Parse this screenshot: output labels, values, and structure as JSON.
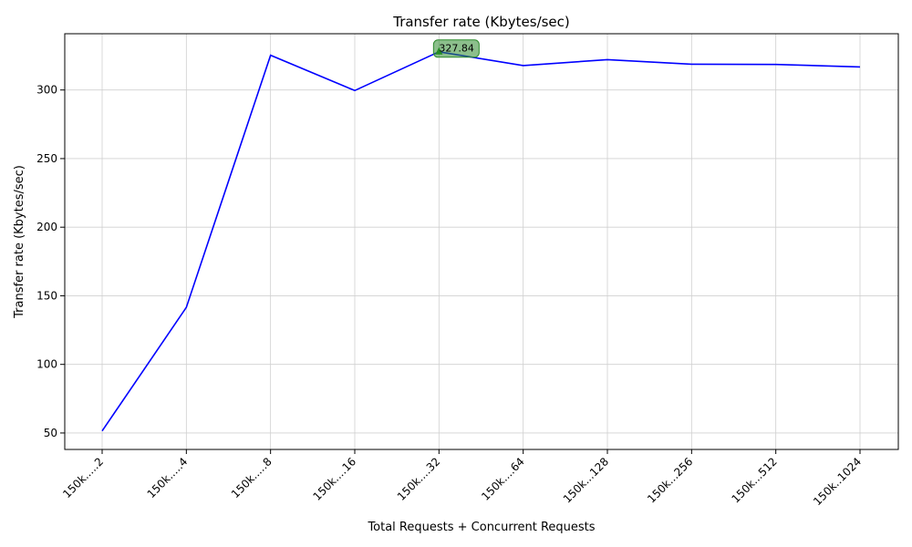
{
  "chart_data": {
    "type": "line",
    "title": "Transfer rate (Kbytes/sec)",
    "xlabel": "Total Requests + Concurrent Requests",
    "ylabel": "Transfer rate (Kbytes/sec)",
    "categories": [
      "150k.....2",
      "150k.....4",
      "150k.....8",
      "150k....16",
      "150k....32",
      "150k....64",
      "150k...128",
      "150k...256",
      "150k...512",
      "150k..1024"
    ],
    "series": [
      {
        "values": [
          51.5,
          141.5,
          325.3,
          299.6,
          327.84,
          317.8,
          322.1,
          318.8,
          318.6,
          316.8
        ],
        "color": "#0000ff"
      }
    ],
    "yticks": [
      50,
      100,
      150,
      200,
      250,
      300
    ],
    "ylim": [
      38,
      341
    ],
    "grid": true,
    "annotation": {
      "category_index": 4,
      "value": 327.84,
      "label": "327.84",
      "color": "#2e8b2e"
    }
  }
}
